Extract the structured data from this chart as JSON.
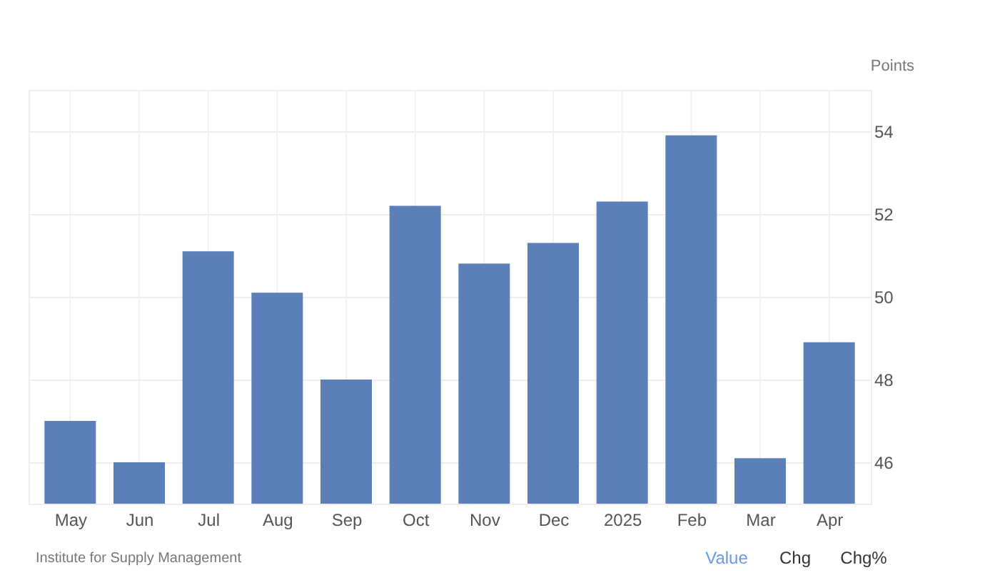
{
  "chart_data": {
    "type": "bar",
    "ylabel": "Points",
    "categories": [
      "May",
      "Jun",
      "Jul",
      "Aug",
      "Sep",
      "Oct",
      "Nov",
      "Dec",
      "2025",
      "Feb",
      "Mar",
      "Apr"
    ],
    "values": [
      47.0,
      46.0,
      51.1,
      50.1,
      48.0,
      52.2,
      50.8,
      51.3,
      52.3,
      53.9,
      46.1,
      48.9
    ],
    "color": "#5b7fb8",
    "ylim": [
      45,
      55
    ],
    "yticks": [
      46,
      48,
      50,
      52,
      54
    ],
    "grid": true,
    "annotations": [
      "Institute for Supply Management",
      "Value",
      "Chg",
      "Chg%"
    ]
  }
}
